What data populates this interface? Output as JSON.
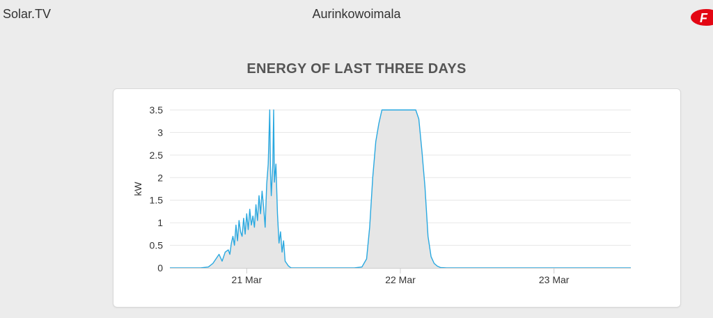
{
  "header": {
    "brand": "Solar.TV",
    "title": "Aurinkowoimala"
  },
  "section": {
    "heading": "ENERGY OF LAST THREE DAYS"
  },
  "colors": {
    "line": "#29a8e0",
    "fill": "#e6e6e6",
    "grid": "#e6e6e6",
    "logo": "#e30613"
  },
  "chart_data": {
    "type": "area",
    "title": "ENERGY OF LAST THREE DAYS",
    "xlabel": "",
    "ylabel": "kW",
    "ylim": [
      0,
      3.5
    ],
    "yticks": [
      0,
      0.5,
      1,
      1.5,
      2,
      2.5,
      3,
      3.5
    ],
    "ytick_labels": [
      "0",
      "0.5",
      "1",
      "1.5",
      "2",
      "2.5",
      "3",
      "3.5"
    ],
    "xlim": [
      20.5,
      23.5
    ],
    "xticks": [
      21,
      22,
      23
    ],
    "xtick_labels": [
      "21 Mar",
      "22 Mar",
      "23 Mar"
    ],
    "grid": true,
    "series": [
      {
        "x": [
          20.5,
          20.7,
          20.75,
          20.78,
          20.8,
          20.82,
          20.84,
          20.86,
          20.88,
          20.89,
          20.9,
          20.91,
          20.92,
          20.93,
          20.94,
          20.95,
          20.96,
          20.97,
          20.98,
          20.99,
          21.0,
          21.01,
          21.02,
          21.03,
          21.04,
          21.05,
          21.06,
          21.07,
          21.08,
          21.09,
          21.1,
          21.11,
          21.12,
          21.13,
          21.14,
          21.15,
          21.155,
          21.16,
          21.17,
          21.175,
          21.18,
          21.19,
          21.2,
          21.21,
          21.22,
          21.23,
          21.24,
          21.25,
          21.26,
          21.27,
          21.28,
          21.29,
          21.3,
          21.35,
          21.7,
          21.75,
          21.78,
          21.8,
          21.82,
          21.84,
          21.86,
          21.88,
          21.9,
          21.93,
          21.96,
          22.0,
          22.03,
          22.06,
          22.1,
          22.12,
          22.14,
          22.16,
          22.18,
          22.2,
          22.22,
          22.24,
          22.26,
          22.3,
          22.4,
          23.0,
          23.5
        ],
        "y": [
          0,
          0,
          0.02,
          0.1,
          0.2,
          0.3,
          0.15,
          0.35,
          0.4,
          0.3,
          0.55,
          0.7,
          0.5,
          0.95,
          0.6,
          1.05,
          0.8,
          0.7,
          1.1,
          0.75,
          1.2,
          0.85,
          1.3,
          0.95,
          1.15,
          0.9,
          1.4,
          1.05,
          1.6,
          1.2,
          1.7,
          1.35,
          0.9,
          1.85,
          2.3,
          3.5,
          2.1,
          1.6,
          2.3,
          3.5,
          1.9,
          2.3,
          1.2,
          0.55,
          0.8,
          0.35,
          0.6,
          0.15,
          0.1,
          0.05,
          0.02,
          0,
          0,
          0,
          0,
          0.02,
          0.2,
          0.9,
          2.0,
          2.8,
          3.2,
          3.5,
          3.5,
          3.5,
          3.5,
          3.5,
          3.5,
          3.5,
          3.5,
          3.3,
          2.6,
          1.8,
          0.7,
          0.25,
          0.1,
          0.04,
          0.01,
          0,
          0,
          0,
          0
        ]
      }
    ]
  }
}
